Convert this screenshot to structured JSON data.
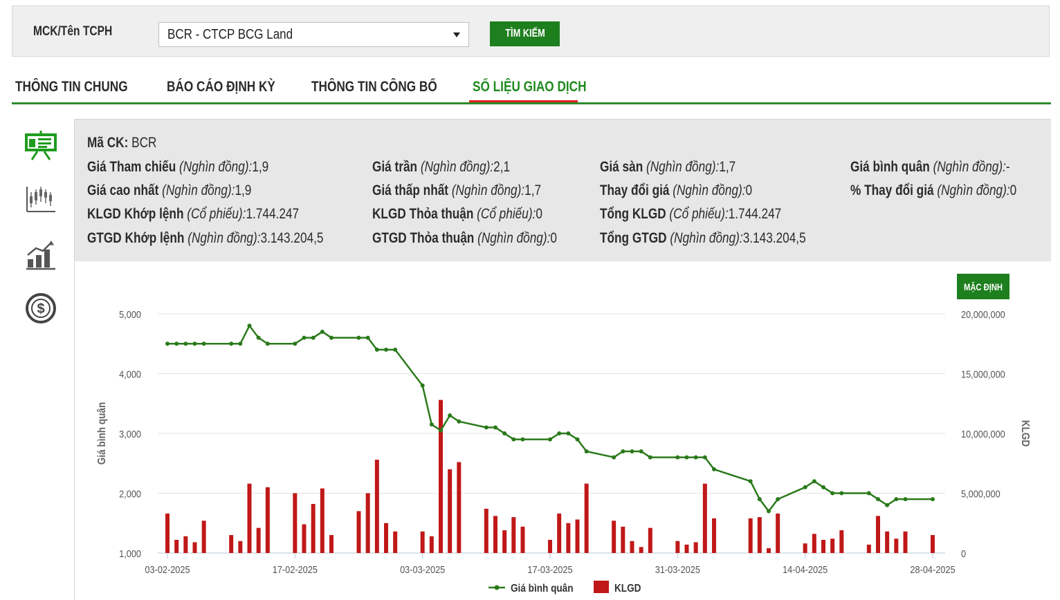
{
  "search": {
    "label": "MCK/Tên TCPH",
    "selected_value": "BCR - CTCP BCG Land",
    "button_label": "TÌM KIẾM"
  },
  "tabs": [
    {
      "label": "THÔNG TIN CHUNG",
      "active": false
    },
    {
      "label": "BÁO CÁO ĐỊNH KỲ",
      "active": false
    },
    {
      "label": "THÔNG TIN CÔNG BỐ",
      "active": false
    },
    {
      "label": "SỐ LIỆU GIAO DỊCH",
      "active": true
    }
  ],
  "side_icons": [
    "presentation-board-icon",
    "candlestick-chart-icon",
    "bar-growth-chart-icon",
    "dollar-coin-icon"
  ],
  "info": {
    "ticker_label": "Mã CK:",
    "ticker_value": "BCR",
    "unit_vnd": "(Nghìn đồng):",
    "unit_shares": "(Cổ phiếu):",
    "fields": {
      "ref_price": {
        "label": "Giá Tham chiếu",
        "value": "1,9"
      },
      "ceiling_price": {
        "label": "Giá trần",
        "value": "2,1"
      },
      "floor_price": {
        "label": "Giá sàn",
        "value": "1,7"
      },
      "avg_price": {
        "label": "Giá bình quân",
        "value": "-"
      },
      "high_price": {
        "label": "Giá cao nhất",
        "value": "1,9"
      },
      "low_price": {
        "label": "Giá thấp nhất",
        "value": "1,7"
      },
      "price_change": {
        "label": "Thay đổi giá",
        "value": "0"
      },
      "pct_change": {
        "label": "% Thay đổi giá",
        "value": "0"
      },
      "vol_matched": {
        "label": "KLGD Khớp lệnh",
        "value": "1.744.247"
      },
      "vol_negotiated": {
        "label": "KLGD Thỏa thuận",
        "value": "0"
      },
      "vol_total": {
        "label": "Tổng KLGD",
        "value": "1.744.247"
      },
      "val_matched": {
        "label": "GTGD Khớp lệnh",
        "value": "3.143.204,5"
      },
      "val_negotiated": {
        "label": "GTGD Thỏa thuận",
        "value": "0"
      },
      "val_total": {
        "label": "Tổng GTGD",
        "value": "3.143.204,5"
      }
    }
  },
  "default_button_label": "MẶC ĐỊNH",
  "colors": {
    "accent_green": "#1e7f1e",
    "active_tab_text": "#1f8a1f",
    "active_tab_underline": "#e32020",
    "price_line": "#2a7a1a",
    "volume_bar": "#c01818"
  },
  "chart_data": {
    "type": "bar+line",
    "xlabel": "",
    "ylabel_left": "Giá bình quân",
    "ylabel_right": "KLGD",
    "ylim_left": [
      1000,
      5000
    ],
    "ylim_right": [
      0,
      20000000
    ],
    "left_ticks": [
      "1,000",
      "2,000",
      "3,000",
      "4,000",
      "5,000"
    ],
    "right_ticks": [
      "0",
      "5,000,000",
      "10,000,000",
      "15,000,000",
      "20,000,000"
    ],
    "x_ticks": [
      "03-02-2025",
      "17-02-2025",
      "03-03-2025",
      "17-03-2025",
      "31-03-2025",
      "14-04-2025",
      "28-04-2025"
    ],
    "grid": "horizontal",
    "legend": [
      "Giá bình quân",
      "KLGD"
    ],
    "legend_position": "bottom-center",
    "dates": [
      "2025-02-03",
      "2025-02-04",
      "2025-02-05",
      "2025-02-06",
      "2025-02-07",
      "2025-02-10",
      "2025-02-11",
      "2025-02-12",
      "2025-02-13",
      "2025-02-14",
      "2025-02-17",
      "2025-02-18",
      "2025-02-19",
      "2025-02-20",
      "2025-02-21",
      "2025-02-24",
      "2025-02-25",
      "2025-02-26",
      "2025-02-27",
      "2025-02-28",
      "2025-03-03",
      "2025-03-04",
      "2025-03-05",
      "2025-03-06",
      "2025-03-07",
      "2025-03-10",
      "2025-03-11",
      "2025-03-12",
      "2025-03-13",
      "2025-03-14",
      "2025-03-17",
      "2025-03-18",
      "2025-03-19",
      "2025-03-20",
      "2025-03-21",
      "2025-03-24",
      "2025-03-25",
      "2025-03-26",
      "2025-03-27",
      "2025-03-28",
      "2025-03-31",
      "2025-04-01",
      "2025-04-02",
      "2025-04-03",
      "2025-04-04",
      "2025-04-08",
      "2025-04-09",
      "2025-04-10",
      "2025-04-11",
      "2025-04-14",
      "2025-04-15",
      "2025-04-16",
      "2025-04-17",
      "2025-04-18",
      "2025-04-21",
      "2025-04-22",
      "2025-04-23",
      "2025-04-24",
      "2025-04-25",
      "2025-04-28"
    ],
    "price": [
      4500,
      4500,
      4500,
      4500,
      4500,
      4500,
      4500,
      4800,
      4600,
      4500,
      4500,
      4600,
      4600,
      4700,
      4600,
      4600,
      4600,
      4400,
      4400,
      4400,
      3800,
      3150,
      3050,
      3300,
      3200,
      3100,
      3100,
      3000,
      2900,
      2900,
      2900,
      3000,
      3000,
      2900,
      2700,
      2600,
      2700,
      2700,
      2700,
      2600,
      2600,
      2600,
      2600,
      2600,
      2400,
      2200,
      1900,
      1700,
      1900,
      2100,
      2200,
      2100,
      2000,
      2000,
      2000,
      1900,
      1800,
      1900,
      1900,
      1900
    ],
    "volume": [
      3300000,
      1100000,
      1400000,
      900000,
      2700000,
      1500000,
      1000000,
      5800000,
      2100000,
      5500000,
      5000000,
      2400000,
      4100000,
      5400000,
      1500000,
      3500000,
      5000000,
      7800000,
      2500000,
      1800000,
      1800000,
      1400000,
      12800000,
      7000000,
      7600000,
      3700000,
      3100000,
      1900000,
      3000000,
      2200000,
      1100000,
      3300000,
      2500000,
      2800000,
      5800000,
      2700000,
      2200000,
      1000000,
      500000,
      2100000,
      1000000,
      700000,
      900000,
      5800000,
      2900000,
      2900000,
      3000000,
      400000,
      3300000,
      800000,
      1600000,
      1100000,
      1200000,
      1900000,
      700000,
      3100000,
      1800000,
      1200000,
      1800000,
      1500000
    ]
  }
}
